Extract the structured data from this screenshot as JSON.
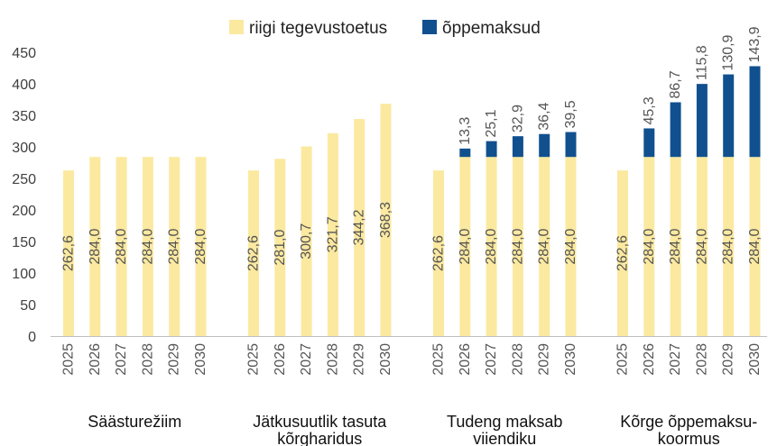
{
  "colors": {
    "tegevustoetus": "#FBE9A0",
    "oppemaksud": "#11508F",
    "axis": "#BFBFBF",
    "text": "#404040"
  },
  "chart_data": {
    "type": "bar",
    "stacked": true,
    "title": "",
    "xlabel": "",
    "ylabel": "",
    "ylim": [
      0,
      450
    ],
    "yticks": [
      0,
      50,
      100,
      150,
      200,
      250,
      300,
      350,
      400,
      450
    ],
    "grid": false,
    "legend": "top-center",
    "series": [
      {
        "name": "riigi tegevustoetus",
        "color_key": "tegevustoetus"
      },
      {
        "name": "õppemaksud",
        "color_key": "oppemaksud"
      }
    ],
    "groups": [
      {
        "label_lines": [
          "Säästurežiim"
        ],
        "years": [
          "2025",
          "2026",
          "2027",
          "2028",
          "2029",
          "2030"
        ],
        "tegevustoetus": [
          262.6,
          284.0,
          284.0,
          284.0,
          284.0,
          284.0
        ],
        "tegevustoetus_labels": [
          "262,6",
          "284,0",
          "284,0",
          "284,0",
          "284,0",
          "284,0"
        ],
        "oppemaksud": [
          0,
          0,
          0,
          0,
          0,
          0
        ],
        "oppemaksud_labels": [
          "",
          "",
          "",
          "",
          "",
          ""
        ]
      },
      {
        "label_lines": [
          "Jätkusuutlik tasuta",
          "kõrgharidus"
        ],
        "years": [
          "2025",
          "2026",
          "2027",
          "2028",
          "2029",
          "2030"
        ],
        "tegevustoetus": [
          262.6,
          281.0,
          300.7,
          321.7,
          344.2,
          368.3
        ],
        "tegevustoetus_labels": [
          "262,6",
          "281,0",
          "300,7",
          "321,7",
          "344,2",
          "368,3"
        ],
        "oppemaksud": [
          0,
          0,
          0,
          0,
          0,
          0
        ],
        "oppemaksud_labels": [
          "",
          "",
          "",
          "",
          "",
          ""
        ]
      },
      {
        "label_lines": [
          "Tudeng maksab",
          "viiendiku"
        ],
        "years": [
          "2025",
          "2026",
          "2027",
          "2028",
          "2029",
          "2030"
        ],
        "tegevustoetus": [
          262.6,
          284.0,
          284.0,
          284.0,
          284.0,
          284.0
        ],
        "tegevustoetus_labels": [
          "262,6",
          "284,0",
          "284,0",
          "284,0",
          "284,0",
          "284,0"
        ],
        "oppemaksud": [
          0,
          13.3,
          25.1,
          32.9,
          36.4,
          39.5
        ],
        "oppemaksud_labels": [
          "",
          "13,3",
          "25,1",
          "32,9",
          "36,4",
          "39,5"
        ]
      },
      {
        "label_lines": [
          "Kõrge õppemaksu-",
          "koormus"
        ],
        "years": [
          "2025",
          "2026",
          "2027",
          "2028",
          "2029",
          "2030"
        ],
        "tegevustoetus": [
          262.6,
          284.0,
          284.0,
          284.0,
          284.0,
          284.0
        ],
        "tegevustoetus_labels": [
          "262,6",
          "284,0",
          "284,0",
          "284,0",
          "284,0",
          "284,0"
        ],
        "oppemaksud": [
          0,
          45.3,
          86.7,
          115.8,
          130.9,
          143.9
        ],
        "oppemaksud_labels": [
          "",
          "45,3",
          "86,7",
          "115,8",
          "130,9",
          "143,9"
        ]
      }
    ]
  }
}
